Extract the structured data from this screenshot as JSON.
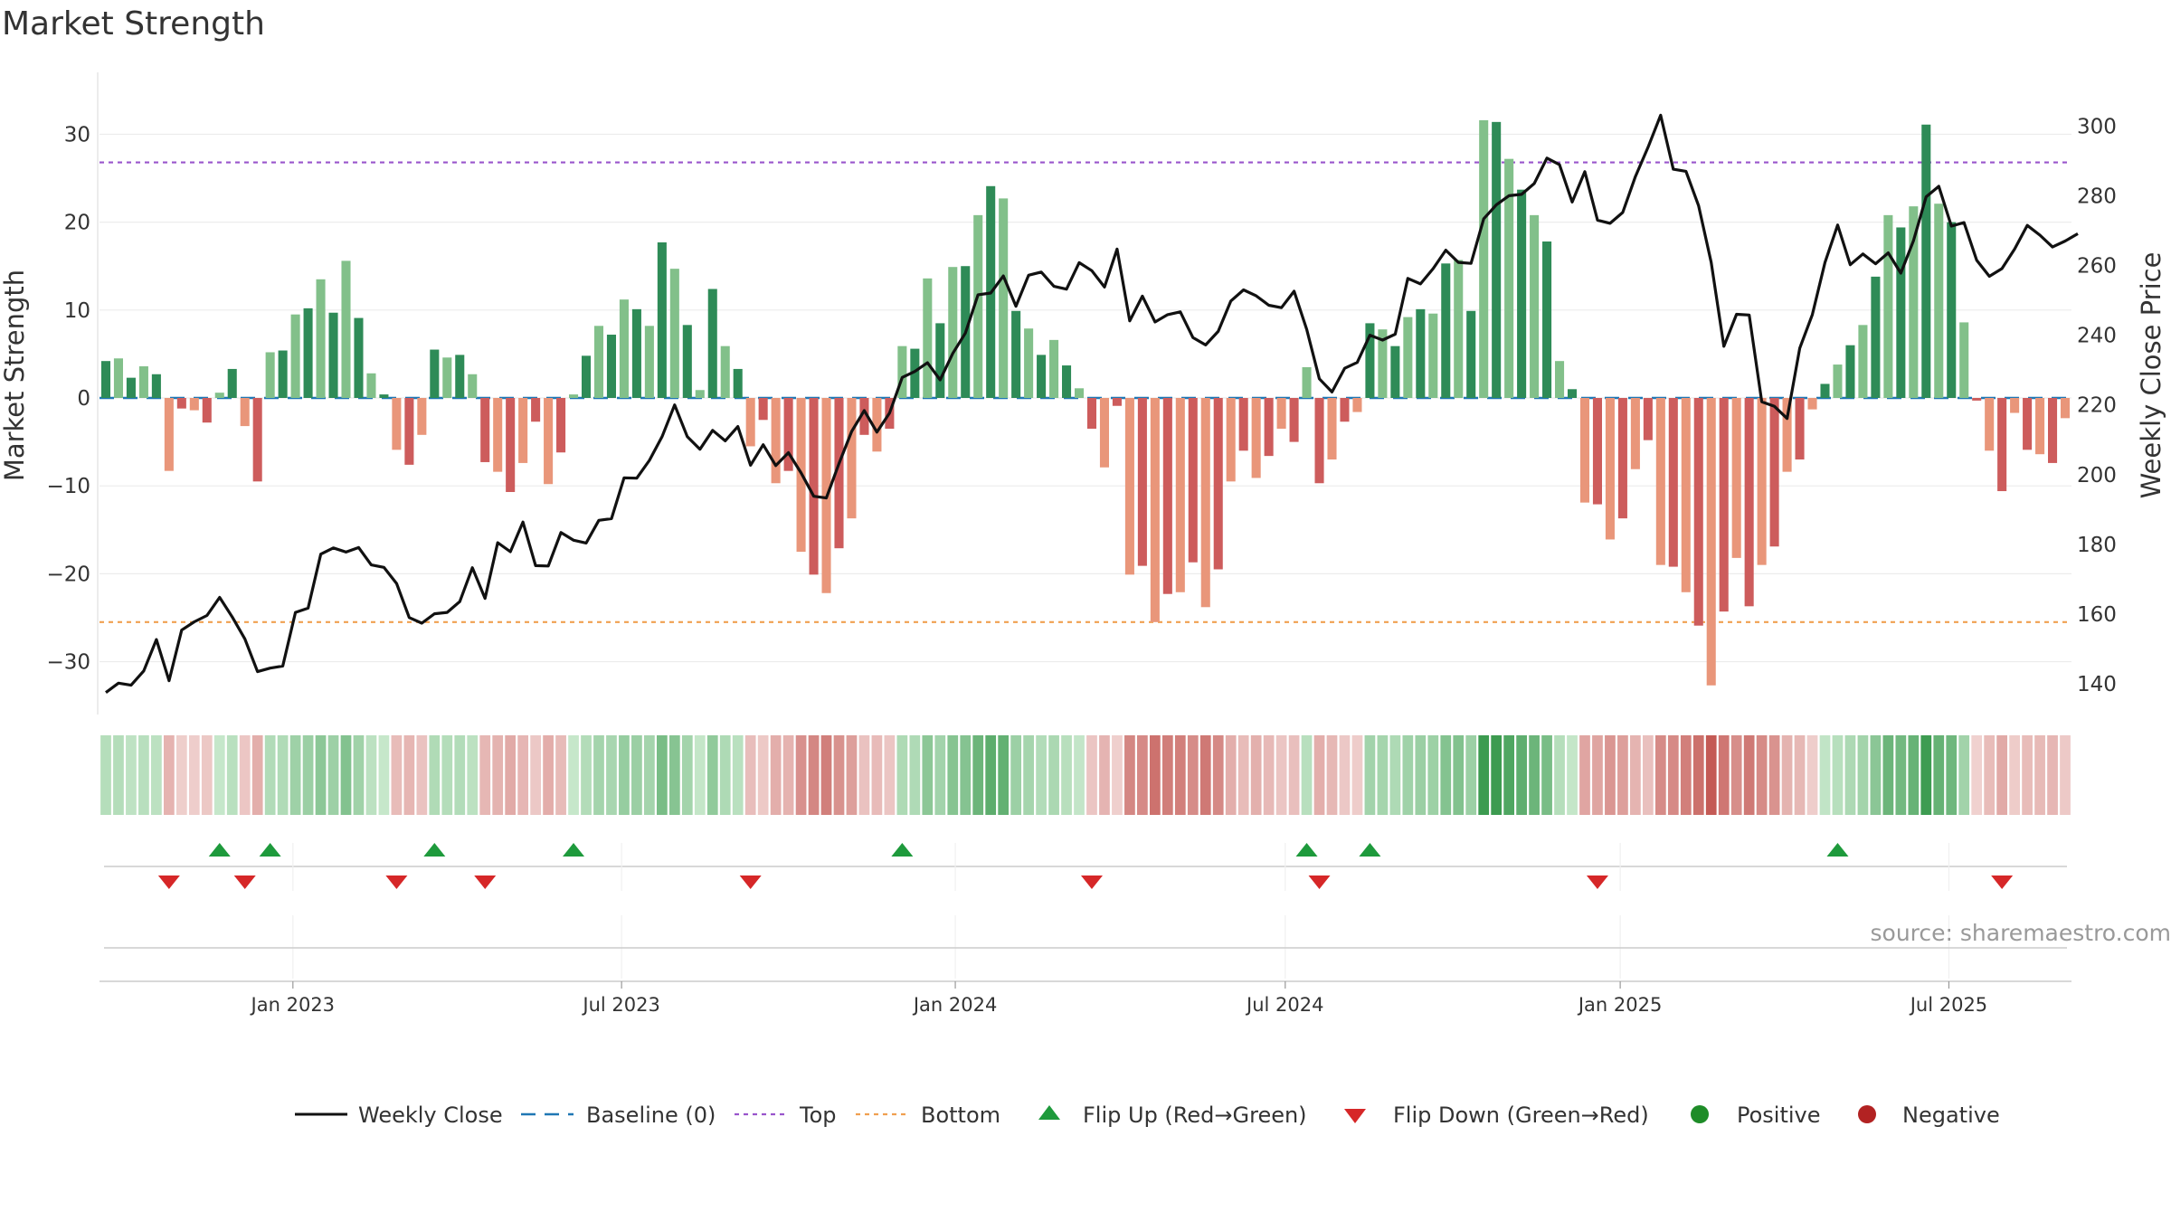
{
  "chart_data": {
    "type": "bar",
    "title": "Market Strength",
    "ylabel": "Market Strength",
    "y2label": "Weekly Close Price",
    "ylim": [
      -35.5,
      35.5
    ],
    "y2lim": [
      132.5,
      311.5
    ],
    "yticks": [
      30,
      20,
      10,
      0,
      -10,
      -20,
      -30
    ],
    "ytick_labels": [
      "30",
      "20",
      "10",
      "0",
      "−10",
      "−20",
      "−30"
    ],
    "y2ticks": [
      300,
      280,
      260,
      240,
      220,
      200,
      180,
      160,
      140
    ],
    "y2tick_labels": [
      "300",
      "280",
      "260",
      "240",
      "220",
      "200",
      "180",
      "160",
      "140"
    ],
    "top_line": 26.8,
    "bottom_line": -25.5,
    "date_ticks": [
      {
        "label": "Jan 2023",
        "week": 14.8
      },
      {
        "label": "Jul 2023",
        "week": 40.8
      },
      {
        "label": "Jan 2024",
        "week": 67.2
      },
      {
        "label": "Jul 2024",
        "week": 93.3
      },
      {
        "label": "Jan 2025",
        "week": 119.8
      },
      {
        "label": "Jul 2025",
        "week": 145.8
      }
    ],
    "strength": [
      4.2,
      4.5,
      2.3,
      3.6,
      2.7,
      -8.3,
      -1.2,
      -1.4,
      -2.8,
      0.6,
      3.3,
      -3.2,
      -9.5,
      5.2,
      5.4,
      9.5,
      10.2,
      13.5,
      9.7,
      15.6,
      9.1,
      2.8,
      0.4,
      -5.9,
      -7.6,
      -4.2,
      5.5,
      4.6,
      4.9,
      2.7,
      -7.3,
      -8.4,
      -10.7,
      -7.4,
      -2.7,
      -9.8,
      -6.2,
      0.4,
      4.8,
      8.2,
      7.2,
      11.2,
      10.1,
      8.2,
      17.7,
      14.7,
      8.3,
      0.9,
      12.4,
      5.9,
      3.3,
      -5.5,
      -2.5,
      -9.7,
      -8.3,
      -17.5,
      -20.1,
      -22.2,
      -17.1,
      -13.7,
      -4.2,
      -6.1,
      -3.5,
      5.9,
      5.6,
      13.6,
      8.5,
      14.9,
      15.0,
      20.8,
      24.1,
      22.7,
      9.9,
      7.9,
      4.9,
      6.6,
      3.7,
      1.1,
      -3.5,
      -7.9,
      -0.9,
      -20.1,
      -19.1,
      -25.5,
      -22.3,
      -22.1,
      -18.7,
      -23.8,
      -19.5,
      -9.5,
      -6.0,
      -9.1,
      -6.6,
      -3.5,
      -5.0,
      3.5,
      -9.7,
      -7.0,
      -2.7,
      -1.6,
      8.5,
      7.8,
      5.9,
      9.2,
      10.1,
      9.6,
      15.3,
      15.7,
      9.9,
      31.6,
      31.4,
      27.2,
      23.7,
      20.8,
      17.8,
      4.2,
      1.0,
      -11.9,
      -12.1,
      -16.1,
      -13.7,
      -8.1,
      -4.8,
      -19.0,
      -19.2,
      -22.1,
      -25.9,
      -32.7,
      -24.3,
      -18.2,
      -23.7,
      -19.0,
      -16.9,
      -8.4,
      -7.0,
      -1.3,
      1.6,
      3.8,
      6.0,
      8.3,
      13.8,
      20.8,
      19.4,
      21.8,
      31.1,
      22.1,
      20.0,
      8.6,
      -0.3,
      -6.0,
      -10.6,
      -1.7,
      -5.9,
      -6.4,
      -7.4,
      -2.3
    ],
    "close": [
      137.5,
      140.2,
      139.6,
      143.7,
      152.7,
      140.9,
      155.4,
      157.8,
      159.6,
      164.8,
      159.2,
      152.9,
      143.5,
      144.5,
      145.1,
      160.5,
      161.7,
      177.2,
      179.0,
      177.8,
      179.1,
      174.1,
      173.4,
      168.8,
      159.0,
      157.4,
      160.1,
      160.5,
      163.6,
      173.3,
      164.5,
      180.5,
      177.9,
      186.4,
      173.9,
      173.8,
      183.4,
      181.2,
      180.4,
      186.9,
      187.4,
      199.1,
      199.0,
      204.1,
      210.9,
      220.0,
      210.9,
      207.3,
      212.7,
      209.7,
      213.8,
      202.7,
      208.6,
      202.6,
      206.3,
      200.5,
      193.8,
      193.3,
      203.2,
      212.4,
      218.4,
      212.2,
      217.7,
      227.9,
      229.6,
      232.1,
      227.2,
      234.8,
      240.6,
      251.6,
      252.1,
      257.0,
      248.3,
      257.2,
      258.1,
      254.0,
      253.2,
      260.8,
      258.5,
      253.8,
      264.7,
      244.1,
      251.2,
      243.8,
      245.9,
      246.7,
      239.3,
      237.2,
      241.1,
      249.8,
      253.0,
      251.3,
      248.6,
      247.9,
      252.6,
      241.6,
      227.5,
      223.7,
      230.5,
      232.2,
      240.0,
      238.6,
      240.3,
      256.3,
      254.7,
      259.1,
      264.4,
      260.9,
      260.6,
      273.4,
      277.4,
      280.0,
      280.4,
      283.5,
      290.8,
      288.9,
      278.2,
      286.9,
      273.0,
      272.1,
      275.2,
      285.5,
      293.9,
      303.1,
      287.6,
      287.0,
      277.1,
      260.9,
      236.8,
      246.0,
      245.8,
      220.9,
      219.6,
      216.1,
      236.3,
      245.9,
      260.9,
      271.6,
      260.2,
      263.3,
      260.5,
      263.6,
      257.8,
      267.1,
      279.7,
      282.7,
      271.3,
      272.3,
      261.5,
      256.9,
      259.1,
      264.7,
      271.5,
      268.7,
      265.3,
      267.0,
      269.1
    ],
    "flip_up_weeks": [
      9,
      13,
      26,
      37,
      63,
      95,
      100,
      137
    ],
    "flip_down_weeks": [
      5,
      11,
      23,
      30,
      51,
      78,
      96,
      118,
      150
    ],
    "legend": [
      {
        "label": "Weekly Close",
        "type": "line-solid"
      },
      {
        "label": "Baseline (0)",
        "type": "line-dashed"
      },
      {
        "label": "Top",
        "type": "line-dotted-purple"
      },
      {
        "label": "Bottom",
        "type": "line-dotted-orange"
      },
      {
        "label": "Flip Up (Red→Green)",
        "type": "triangle-up"
      },
      {
        "label": "Flip Down (Green→Red)",
        "type": "triangle-down"
      },
      {
        "label": "Positive",
        "type": "dot-green"
      },
      {
        "label": "Negative",
        "type": "dot-red"
      }
    ]
  },
  "source_text": "source: sharemaestro.com",
  "colors": {
    "green_dark": "#2e8b57",
    "green_light": "#82c08a",
    "red_dark": "#cd5c5c",
    "red_light": "#e9967a",
    "close_line": "#111111",
    "baseline": "#1f77b4",
    "top_line": "#9955cc",
    "bottom_line": "#f0a050",
    "flip_up": "#1e9a3c",
    "flip_down": "#d62728",
    "positive_dot": "#1e8c28",
    "negative_dot": "#b22222"
  }
}
